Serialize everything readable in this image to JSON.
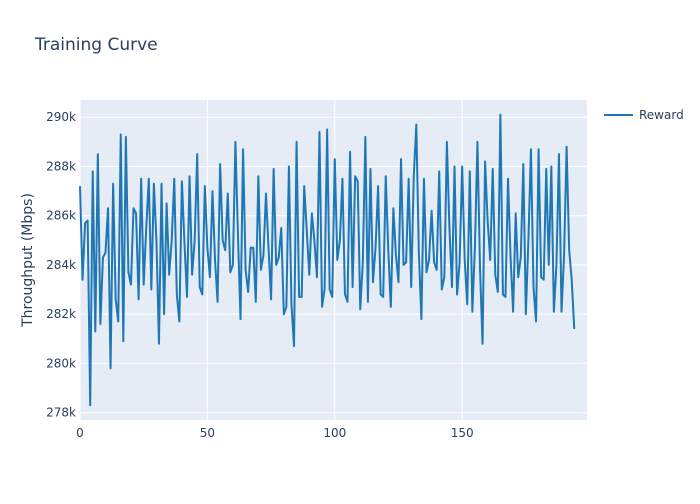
{
  "chart_data": {
    "type": "line",
    "title": "Training Curve",
    "xlabel": "",
    "ylabel": "Throughput (Mbps)",
    "xlim": [
      0,
      199
    ],
    "ylim": [
      277700,
      290700
    ],
    "x_ticks": [
      0,
      50,
      100,
      150
    ],
    "y_ticks": [
      278000,
      280000,
      282000,
      284000,
      286000,
      288000,
      290000
    ],
    "y_tick_labels": [
      "278k",
      "280k",
      "282k",
      "284k",
      "286k",
      "288k",
      "290k"
    ],
    "grid": true,
    "legend_position": "top-right",
    "colors": {
      "series": "#1f77b4",
      "plot_bg": "#e5ecf6",
      "grid": "#ffffff",
      "text": "#2a3f5f"
    },
    "series": [
      {
        "name": "Reward",
        "x_start": 0,
        "x_step": 1,
        "values": [
          287200,
          283400,
          285700,
          285800,
          278300,
          287800,
          281300,
          288500,
          281600,
          284300,
          284500,
          286300,
          279800,
          287300,
          282600,
          281700,
          289300,
          280900,
          289200,
          283700,
          283200,
          286300,
          286100,
          282600,
          287500,
          283200,
          285500,
          287500,
          283000,
          287300,
          285000,
          280800,
          287300,
          282000,
          286500,
          283600,
          285000,
          287500,
          282800,
          281700,
          287400,
          284900,
          282700,
          287600,
          283600,
          285000,
          288500,
          283100,
          282800,
          287200,
          284700,
          283500,
          287000,
          284200,
          282500,
          288100,
          285000,
          284600,
          286900,
          283700,
          284000,
          289000,
          285200,
          281800,
          288700,
          283800,
          282900,
          284700,
          284700,
          282500,
          287600,
          283800,
          284400,
          286900,
          284700,
          282600,
          287900,
          284000,
          284300,
          285500,
          282000,
          282300,
          288000,
          282400,
          280700,
          289000,
          282700,
          282700,
          287200,
          285400,
          283600,
          286100,
          285000,
          283500,
          289400,
          282300,
          283000,
          289500,
          283000,
          282700,
          288300,
          284200,
          285000,
          287500,
          282800,
          282500,
          288600,
          283100,
          287600,
          287400,
          282200,
          284100,
          289200,
          282500,
          287900,
          283300,
          284700,
          287200,
          282800,
          282700,
          287600,
          284600,
          282300,
          286300,
          284400,
          283300,
          288300,
          284000,
          284100,
          287500,
          283100,
          287600,
          289700,
          284500,
          281800,
          287500,
          283700,
          284200,
          286200,
          284100,
          283800,
          287800,
          283000,
          283500,
          289000,
          285500,
          283100,
          288000,
          282800,
          284100,
          288000,
          284200,
          282400,
          287800,
          282100,
          284700,
          289000,
          283900,
          280800,
          288200,
          285800,
          284200,
          287900,
          283600,
          282900,
          290100,
          282800,
          282700,
          287500,
          284300,
          282100,
          286100,
          283500,
          284300,
          288100,
          282000,
          285000,
          288700,
          283100,
          281700,
          288700,
          283500,
          283400,
          287900,
          284000,
          288000,
          282100,
          284000,
          288500,
          282100,
          284400,
          288800,
          284600,
          283400,
          281400
        ]
      }
    ]
  }
}
